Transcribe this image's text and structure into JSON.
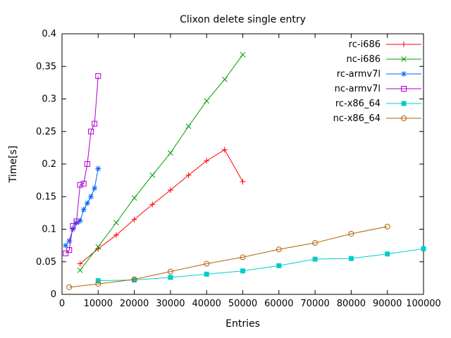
{
  "chart_data": {
    "type": "line",
    "title": "Clixon delete single entry",
    "xlabel": "Entries",
    "ylabel": "Time[s]",
    "xlim": [
      0,
      100000
    ],
    "ylim": [
      0,
      0.4
    ],
    "xtick_step": 10000,
    "ytick_step": 0.05,
    "grid": false,
    "legend_position": "top-right-inside",
    "axis_color": "#000000",
    "background_color": "#ffffff",
    "series": [
      {
        "name": "rc-i686",
        "color": "#ff0000",
        "marker": "plus",
        "x": [
          5000,
          10000,
          15000,
          20000,
          25000,
          30000,
          35000,
          40000,
          45000,
          50000
        ],
        "y": [
          0.047,
          0.07,
          0.091,
          0.115,
          0.138,
          0.16,
          0.183,
          0.205,
          0.222,
          0.173
        ]
      },
      {
        "name": "nc-i686",
        "color": "#00a000",
        "marker": "cross",
        "x": [
          5000,
          10000,
          15000,
          20000,
          25000,
          30000,
          35000,
          40000,
          45000,
          50000
        ],
        "y": [
          0.037,
          0.073,
          0.11,
          0.148,
          0.183,
          0.217,
          0.258,
          0.297,
          0.33,
          0.368
        ]
      },
      {
        "name": "rc-armv7l",
        "color": "#0060ff",
        "marker": "asterisk",
        "x": [
          1000,
          2000,
          3000,
          4000,
          5000,
          6000,
          7000,
          8000,
          9000,
          10000
        ],
        "y": [
          0.075,
          0.082,
          0.1,
          0.11,
          0.113,
          0.13,
          0.14,
          0.15,
          0.163,
          0.193
        ]
      },
      {
        "name": "nc-armv7l",
        "color": "#aa00cc",
        "marker": "square-open",
        "x": [
          1000,
          2000,
          3000,
          4000,
          5000,
          6000,
          7000,
          8000,
          9000,
          10000
        ],
        "y": [
          0.063,
          0.068,
          0.105,
          0.112,
          0.168,
          0.17,
          0.2,
          0.25,
          0.262,
          0.335
        ]
      },
      {
        "name": "rc-x86_64",
        "color": "#00cccc",
        "marker": "square-filled",
        "x": [
          10000,
          20000,
          30000,
          40000,
          50000,
          60000,
          70000,
          80000,
          90000,
          100000
        ],
        "y": [
          0.021,
          0.022,
          0.026,
          0.031,
          0.036,
          0.044,
          0.054,
          0.055,
          0.062,
          0.07
        ]
      },
      {
        "name": "nc-x86_64",
        "color": "#b45f06",
        "marker": "circle-open",
        "x": [
          2000,
          10000,
          20000,
          30000,
          40000,
          50000,
          60000,
          70000,
          80000,
          90000
        ],
        "y": [
          0.011,
          0.016,
          0.023,
          0.035,
          0.047,
          0.057,
          0.069,
          0.079,
          0.093,
          0.104
        ]
      }
    ]
  }
}
